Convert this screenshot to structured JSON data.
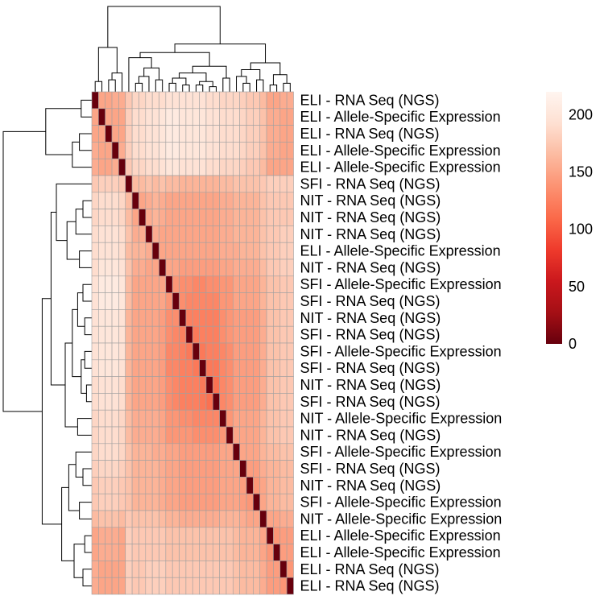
{
  "chart_data": {
    "type": "heatmap",
    "row_labels": [
      "ELI - RNA Seq (NGS)",
      "ELI - Allele-Specific Expression",
      "ELI - RNA Seq (NGS)",
      "ELI - Allele-Specific Expression",
      "ELI - Allele-Specific Expression",
      "SFI - RNA Seq (NGS)",
      "NIT - RNA Seq (NGS)",
      "NIT - RNA Seq (NGS)",
      "NIT - RNA Seq (NGS)",
      "ELI - Allele-Specific Expression",
      "NIT - RNA Seq (NGS)",
      "SFI - Allele-Specific Expression",
      "SFI - RNA Seq (NGS)",
      "NIT - RNA Seq (NGS)",
      "SFI - RNA Seq (NGS)",
      "SFI - Allele-Specific Expression",
      "SFI - RNA Seq (NGS)",
      "NIT - RNA Seq (NGS)",
      "SFI - RNA Seq (NGS)",
      "NIT - Allele-Specific Expression",
      "NIT - RNA Seq (NGS)",
      "SFI - Allele-Specific Expression",
      "SFI - RNA Seq (NGS)",
      "NIT - RNA Seq (NGS)",
      "SFI - Allele-Specific Expression",
      "NIT - Allele-Specific Expression",
      "ELI - Allele-Specific Expression",
      "ELI - Allele-Specific Expression",
      "ELI - RNA Seq (NGS)",
      "ELI - RNA Seq (NGS)"
    ],
    "matrix": [
      [
        0,
        150,
        150,
        155,
        155,
        175,
        185,
        185,
        190,
        190,
        190,
        195,
        195,
        195,
        195,
        195,
        195,
        190,
        190,
        185,
        185,
        185,
        180,
        175,
        175,
        165,
        150,
        150,
        155,
        155
      ],
      [
        150,
        0,
        150,
        150,
        150,
        180,
        190,
        190,
        195,
        195,
        200,
        205,
        205,
        200,
        200,
        200,
        200,
        195,
        195,
        190,
        190,
        190,
        185,
        180,
        180,
        170,
        155,
        155,
        150,
        150
      ],
      [
        150,
        150,
        0,
        150,
        150,
        180,
        190,
        190,
        195,
        195,
        200,
        205,
        205,
        200,
        200,
        200,
        200,
        195,
        195,
        190,
        190,
        190,
        185,
        180,
        180,
        170,
        155,
        155,
        150,
        150
      ],
      [
        155,
        150,
        150,
        0,
        155,
        180,
        190,
        190,
        195,
        195,
        200,
        205,
        205,
        200,
        200,
        200,
        200,
        195,
        195,
        190,
        190,
        190,
        185,
        180,
        180,
        170,
        155,
        155,
        150,
        150
      ],
      [
        155,
        150,
        150,
        155,
        0,
        175,
        185,
        185,
        190,
        190,
        195,
        200,
        200,
        195,
        195,
        195,
        195,
        190,
        190,
        185,
        185,
        185,
        180,
        175,
        175,
        165,
        150,
        150,
        150,
        150
      ],
      [
        175,
        180,
        180,
        180,
        175,
        0,
        165,
        165,
        170,
        165,
        170,
        165,
        165,
        160,
        160,
        160,
        160,
        160,
        160,
        165,
        165,
        170,
        170,
        170,
        170,
        175,
        180,
        180,
        180,
        180
      ],
      [
        185,
        190,
        190,
        190,
        185,
        165,
        0,
        150,
        155,
        160,
        155,
        150,
        150,
        150,
        150,
        150,
        150,
        150,
        150,
        155,
        155,
        160,
        160,
        160,
        160,
        170,
        175,
        175,
        175,
        175
      ],
      [
        185,
        190,
        190,
        190,
        185,
        165,
        150,
        0,
        155,
        160,
        155,
        150,
        150,
        150,
        150,
        150,
        150,
        150,
        150,
        155,
        155,
        160,
        160,
        160,
        160,
        170,
        175,
        175,
        175,
        175
      ],
      [
        190,
        195,
        195,
        195,
        190,
        170,
        155,
        155,
        0,
        155,
        150,
        150,
        150,
        150,
        150,
        150,
        150,
        150,
        150,
        155,
        155,
        160,
        160,
        160,
        160,
        170,
        175,
        175,
        180,
        180
      ],
      [
        190,
        195,
        195,
        195,
        190,
        165,
        160,
        160,
        155,
        0,
        150,
        150,
        150,
        150,
        150,
        150,
        150,
        150,
        150,
        155,
        155,
        155,
        160,
        160,
        160,
        170,
        175,
        175,
        180,
        180
      ],
      [
        190,
        200,
        200,
        200,
        195,
        170,
        155,
        155,
        150,
        150,
        0,
        150,
        150,
        145,
        145,
        145,
        145,
        145,
        145,
        150,
        150,
        155,
        155,
        155,
        155,
        165,
        175,
        175,
        180,
        180
      ],
      [
        195,
        205,
        205,
        205,
        200,
        165,
        150,
        150,
        150,
        150,
        150,
        0,
        140,
        135,
        135,
        130,
        130,
        135,
        135,
        140,
        140,
        150,
        150,
        150,
        150,
        160,
        170,
        170,
        175,
        175
      ],
      [
        195,
        205,
        205,
        205,
        200,
        165,
        150,
        150,
        150,
        150,
        150,
        140,
        0,
        135,
        130,
        130,
        130,
        130,
        130,
        140,
        140,
        150,
        150,
        150,
        150,
        160,
        170,
        170,
        175,
        175
      ],
      [
        195,
        200,
        200,
        200,
        195,
        160,
        150,
        150,
        150,
        150,
        145,
        135,
        135,
        0,
        125,
        125,
        125,
        125,
        125,
        135,
        140,
        145,
        145,
        145,
        145,
        155,
        170,
        170,
        175,
        175
      ],
      [
        195,
        200,
        200,
        200,
        195,
        160,
        150,
        150,
        150,
        150,
        145,
        135,
        130,
        125,
        0,
        120,
        125,
        125,
        125,
        135,
        140,
        145,
        145,
        145,
        145,
        155,
        170,
        170,
        175,
        175
      ],
      [
        195,
        200,
        200,
        200,
        195,
        160,
        150,
        150,
        150,
        150,
        145,
        130,
        130,
        125,
        120,
        0,
        120,
        125,
        125,
        130,
        135,
        145,
        145,
        145,
        145,
        155,
        170,
        170,
        175,
        175
      ],
      [
        195,
        200,
        200,
        200,
        195,
        160,
        150,
        150,
        150,
        150,
        145,
        130,
        130,
        125,
        125,
        120,
        0,
        120,
        120,
        130,
        135,
        145,
        145,
        145,
        145,
        155,
        170,
        170,
        175,
        175
      ],
      [
        190,
        195,
        195,
        195,
        190,
        160,
        150,
        150,
        150,
        150,
        145,
        135,
        130,
        125,
        125,
        125,
        120,
        0,
        115,
        130,
        135,
        145,
        145,
        145,
        145,
        155,
        170,
        170,
        175,
        175
      ],
      [
        190,
        195,
        195,
        195,
        190,
        160,
        150,
        150,
        150,
        150,
        145,
        135,
        130,
        125,
        125,
        125,
        120,
        115,
        0,
        130,
        135,
        145,
        145,
        145,
        145,
        155,
        170,
        170,
        175,
        175
      ],
      [
        185,
        190,
        190,
        190,
        185,
        165,
        155,
        155,
        155,
        155,
        150,
        140,
        140,
        135,
        135,
        130,
        130,
        130,
        130,
        0,
        140,
        150,
        150,
        150,
        150,
        160,
        170,
        170,
        175,
        175
      ],
      [
        185,
        190,
        190,
        190,
        185,
        165,
        155,
        155,
        155,
        155,
        150,
        140,
        140,
        140,
        140,
        135,
        135,
        135,
        135,
        140,
        0,
        150,
        150,
        150,
        150,
        160,
        170,
        170,
        175,
        175
      ],
      [
        185,
        190,
        190,
        190,
        185,
        170,
        160,
        160,
        160,
        155,
        155,
        150,
        150,
        145,
        145,
        145,
        145,
        145,
        145,
        150,
        150,
        0,
        150,
        150,
        150,
        160,
        165,
        165,
        170,
        170
      ],
      [
        180,
        185,
        185,
        185,
        180,
        170,
        160,
        160,
        160,
        160,
        155,
        150,
        150,
        145,
        145,
        145,
        145,
        145,
        145,
        150,
        150,
        150,
        0,
        145,
        145,
        155,
        160,
        160,
        165,
        165
      ],
      [
        175,
        180,
        180,
        180,
        175,
        170,
        160,
        160,
        160,
        160,
        155,
        150,
        150,
        145,
        145,
        145,
        145,
        145,
        145,
        150,
        150,
        150,
        145,
        0,
        140,
        150,
        160,
        160,
        165,
        165
      ],
      [
        175,
        180,
        180,
        180,
        175,
        170,
        160,
        160,
        160,
        160,
        155,
        150,
        150,
        145,
        145,
        145,
        145,
        145,
        145,
        150,
        150,
        150,
        145,
        140,
        0,
        150,
        160,
        160,
        165,
        165
      ],
      [
        165,
        170,
        170,
        170,
        165,
        175,
        170,
        170,
        170,
        170,
        165,
        160,
        160,
        155,
        155,
        155,
        155,
        155,
        155,
        160,
        160,
        160,
        155,
        150,
        150,
        0,
        150,
        150,
        155,
        155
      ],
      [
        150,
        155,
        155,
        155,
        150,
        180,
        175,
        175,
        175,
        175,
        175,
        170,
        170,
        170,
        170,
        170,
        170,
        170,
        170,
        170,
        170,
        165,
        160,
        160,
        160,
        150,
        0,
        140,
        145,
        145
      ],
      [
        150,
        155,
        155,
        155,
        150,
        180,
        175,
        175,
        175,
        175,
        175,
        170,
        170,
        170,
        170,
        170,
        170,
        170,
        170,
        170,
        170,
        165,
        160,
        160,
        160,
        150,
        140,
        0,
        145,
        145
      ],
      [
        155,
        150,
        150,
        150,
        150,
        180,
        175,
        175,
        180,
        180,
        180,
        175,
        175,
        175,
        175,
        175,
        175,
        175,
        175,
        175,
        175,
        170,
        165,
        165,
        165,
        155,
        145,
        145,
        0,
        140
      ],
      [
        155,
        150,
        150,
        150,
        150,
        180,
        175,
        175,
        180,
        180,
        180,
        175,
        175,
        175,
        175,
        175,
        175,
        175,
        175,
        175,
        175,
        170,
        165,
        165,
        165,
        155,
        145,
        145,
        140,
        0
      ]
    ],
    "color_scale": {
      "min": 0,
      "max": 220,
      "stops": [
        "#67000d",
        "#a50f15",
        "#cb181d",
        "#ef3b2c",
        "#fb6a4a",
        "#fc9272",
        "#fcbba1",
        "#fee0d2",
        "#fff5f0"
      ]
    },
    "legend_ticks": [
      "0",
      "50",
      "100",
      "150",
      "200"
    ],
    "legend_tick_values": [
      0,
      50,
      100,
      150,
      200
    ],
    "grid": true,
    "grid_color": "#a0a0a0",
    "dendrogram_color": "#000000",
    "legend_position": "right",
    "title": "",
    "xlabel": "",
    "ylabel": ""
  }
}
